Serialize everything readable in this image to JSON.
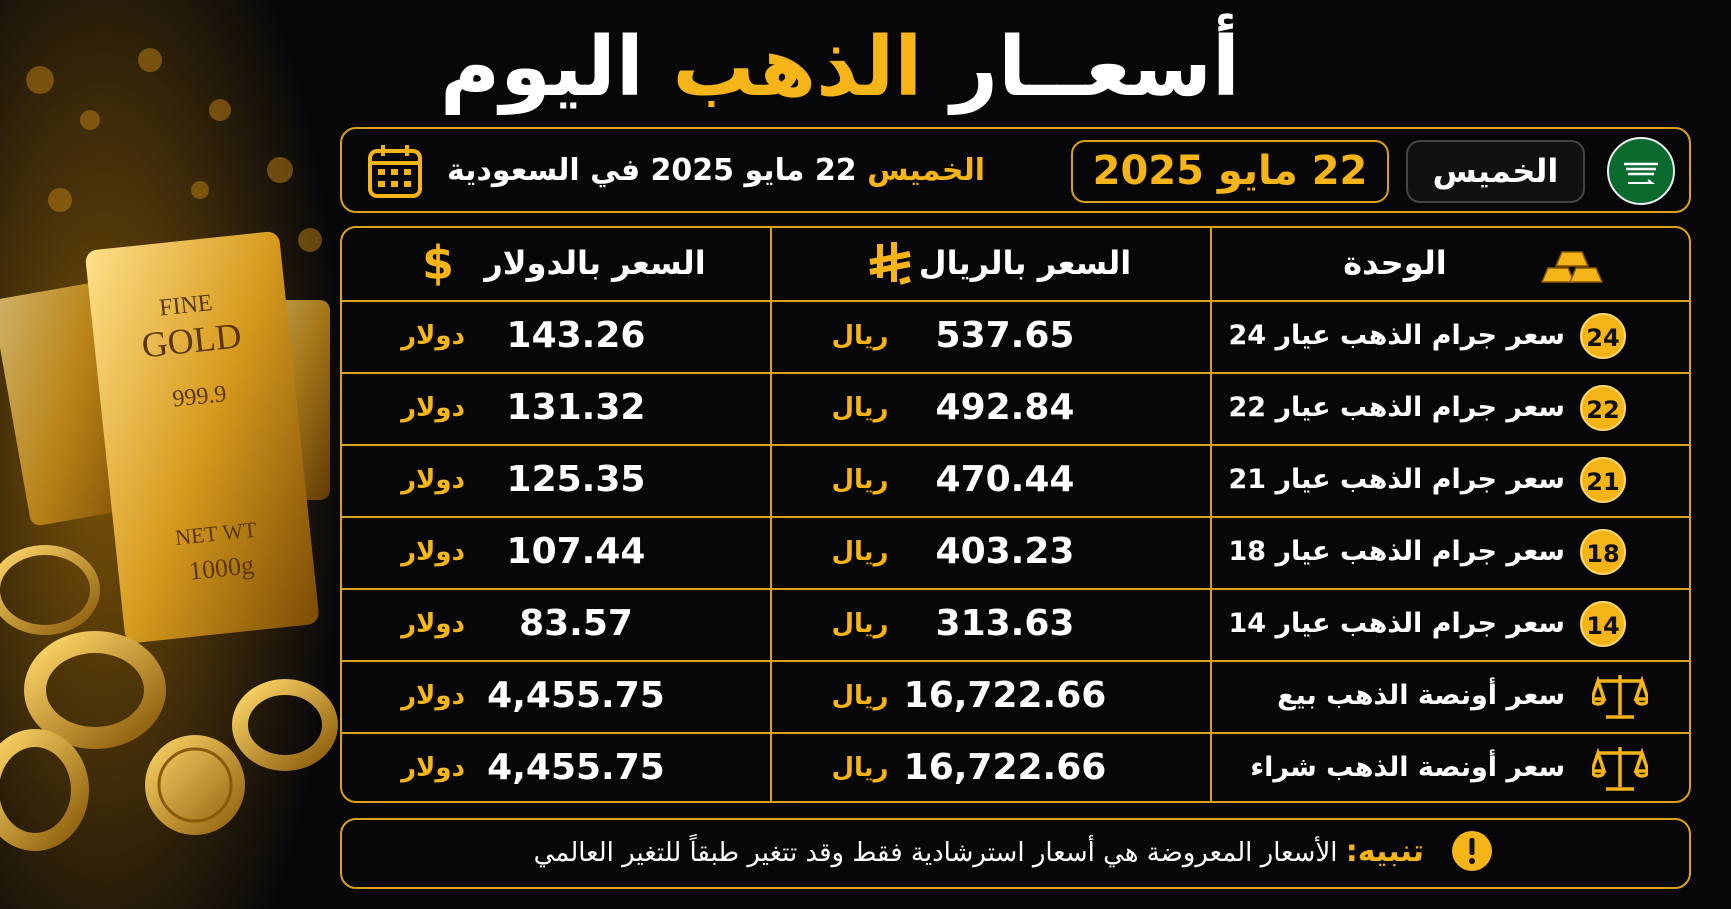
{
  "title": {
    "before": "أسعــار",
    "highlight": "الذهب",
    "after": "اليوم"
  },
  "date_bar": {
    "day": "الخميس",
    "date": "22 مايو 2025",
    "summary_day": "الخميس",
    "summary_rest": "22 مايو 2025 في السعودية"
  },
  "image": {
    "bar_text": [
      "FINE",
      "GOLD",
      "999.9",
      "NET WT",
      "1000g"
    ]
  },
  "table": {
    "headers": [
      "الوحدة",
      "السعر بالريال",
      "السعر بالدولار"
    ],
    "dollar_symbol": "$",
    "rows": [
      {
        "badge": "24",
        "label": "سعر جرام الذهب عيار 24",
        "sar": "537.65",
        "sar_unit": "ريال",
        "usd": "143.26",
        "usd_unit": "دولار"
      },
      {
        "badge": "22",
        "label": "سعر جرام الذهب عيار 22",
        "sar": "492.84",
        "sar_unit": "ريال",
        "usd": "131.32",
        "usd_unit": "دولار"
      },
      {
        "badge": "21",
        "label": "سعر جرام الذهب عيار 21",
        "sar": "470.44",
        "sar_unit": "ريال",
        "usd": "125.35",
        "usd_unit": "دولار"
      },
      {
        "badge": "18",
        "label": "سعر جرام الذهب عيار 18",
        "sar": "403.23",
        "sar_unit": "ريال",
        "usd": "107.44",
        "usd_unit": "دولار"
      },
      {
        "badge": "14",
        "label": "سعر جرام الذهب عيار 14",
        "sar": "313.63",
        "sar_unit": "ريال",
        "usd": "83.57",
        "usd_unit": "دولار"
      },
      {
        "label": "سعر أونصة الذهب بيع",
        "sar": "16,722.66",
        "sar_unit": "ريال",
        "usd": "4,455.75",
        "usd_unit": "دولار"
      },
      {
        "label": "سعر أونصة الذهب شراء",
        "sar": "16,722.66",
        "sar_unit": "ريال",
        "usd": "4,455.75",
        "usd_unit": "دولار"
      }
    ]
  },
  "notice": {
    "label": "تنبيه:",
    "text": "الأسعار المعروضة هي أسعار استرشادية فقط وقد تتغير طبقاً للتغير العالمي"
  }
}
